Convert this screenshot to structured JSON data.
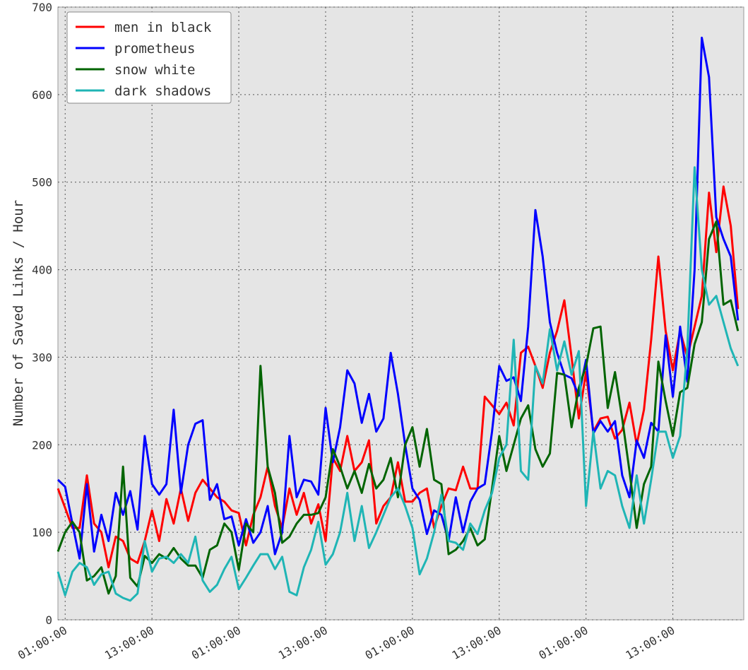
{
  "chart_data": {
    "type": "line",
    "ylabel": "Number of Saved Links / Hour",
    "categories": [
      null,
      "01:00:00",
      null,
      null,
      null,
      null,
      null,
      null,
      null,
      null,
      null,
      null,
      null,
      "13:00:00",
      null,
      null,
      null,
      null,
      null,
      null,
      null,
      null,
      null,
      null,
      null,
      "01:00:00",
      null,
      null,
      null,
      null,
      null,
      null,
      null,
      null,
      null,
      null,
      null,
      "13:00:00",
      null,
      null,
      null,
      null,
      null,
      null,
      null,
      null,
      null,
      null,
      null,
      "01:00:00",
      null,
      null,
      null,
      null,
      null,
      null,
      null,
      null,
      null,
      null,
      null,
      "13:00:00",
      null,
      null,
      null,
      null,
      null,
      null,
      null,
      null,
      null,
      null,
      null,
      "01:00:00",
      null,
      null,
      null,
      null,
      null,
      null,
      null,
      null,
      null,
      null,
      null,
      "13:00:00",
      null,
      null,
      null,
      null,
      null,
      null,
      null,
      null,
      null
    ],
    "series": [
      {
        "name": "men in black",
        "color": "#ff0000",
        "values": [
          150,
          128,
          105,
          105,
          165,
          110,
          100,
          60,
          95,
          90,
          70,
          65,
          90,
          125,
          90,
          138,
          110,
          150,
          113,
          145,
          160,
          150,
          140,
          135,
          125,
          122,
          85,
          120,
          140,
          175,
          130,
          105,
          150,
          120,
          145,
          110,
          132,
          90,
          185,
          170,
          210,
          170,
          180,
          205,
          110,
          130,
          140,
          180,
          135,
          135,
          145,
          150,
          105,
          130,
          150,
          148,
          175,
          150,
          150,
          255,
          245,
          235,
          248,
          222,
          305,
          312,
          290,
          265,
          305,
          330,
          365,
          300,
          230,
          283,
          215,
          230,
          232,
          207,
          217,
          248,
          200,
          240,
          320,
          415,
          330,
          285,
          330,
          300,
          335,
          370,
          488,
          420,
          495,
          450,
          355
        ]
      },
      {
        "name": "prometheus",
        "color": "#0000ff",
        "values": [
          160,
          152,
          110,
          70,
          155,
          78,
          120,
          90,
          145,
          120,
          147,
          103,
          210,
          155,
          143,
          155,
          240,
          145,
          200,
          224,
          228,
          137,
          155,
          115,
          118,
          85,
          115,
          88,
          100,
          130,
          75,
          100,
          210,
          140,
          160,
          158,
          143,
          242,
          180,
          220,
          285,
          270,
          225,
          258,
          215,
          230,
          305,
          258,
          200,
          150,
          137,
          98,
          125,
          120,
          90,
          140,
          100,
          135,
          150,
          155,
          215,
          290,
          273,
          277,
          250,
          335,
          468,
          415,
          340,
          305,
          280,
          276,
          256,
          297,
          213,
          227,
          215,
          227,
          165,
          140,
          205,
          185,
          225,
          215,
          325,
          255,
          335,
          272,
          400,
          665,
          620,
          460,
          435,
          415,
          342
        ]
      },
      {
        "name": "snow white",
        "color": "#006400",
        "values": [
          78,
          100,
          112,
          100,
          45,
          50,
          60,
          30,
          50,
          175,
          48,
          38,
          73,
          65,
          75,
          70,
          82,
          70,
          62,
          62,
          48,
          80,
          85,
          110,
          100,
          57,
          110,
          100,
          290,
          175,
          145,
          88,
          95,
          110,
          120,
          120,
          122,
          140,
          195,
          175,
          150,
          170,
          145,
          178,
          150,
          160,
          185,
          140,
          200,
          220,
          175,
          218,
          160,
          155,
          75,
          80,
          90,
          105,
          85,
          92,
          150,
          210,
          170,
          200,
          230,
          245,
          195,
          175,
          190,
          282,
          280,
          220,
          265,
          290,
          333,
          335,
          242,
          283,
          230,
          170,
          105,
          155,
          175,
          295,
          250,
          210,
          260,
          265,
          315,
          340,
          435,
          455,
          360,
          365,
          330
        ]
      },
      {
        "name": "dark shadows",
        "color": "#1fb5b5",
        "values": [
          55,
          28,
          55,
          65,
          60,
          40,
          52,
          55,
          30,
          25,
          22,
          30,
          90,
          55,
          70,
          72,
          65,
          75,
          65,
          95,
          45,
          32,
          40,
          58,
          72,
          35,
          48,
          62,
          75,
          75,
          58,
          72,
          32,
          28,
          60,
          80,
          112,
          63,
          75,
          100,
          145,
          90,
          130,
          82,
          100,
          120,
          140,
          150,
          130,
          105,
          52,
          70,
          100,
          143,
          90,
          88,
          80,
          110,
          98,
          125,
          145,
          185,
          200,
          320,
          170,
          160,
          290,
          270,
          332,
          285,
          318,
          280,
          307,
          130,
          215,
          150,
          170,
          165,
          130,
          105,
          165,
          110,
          160,
          215,
          215,
          185,
          210,
          310,
          517,
          400,
          360,
          370,
          340,
          310,
          290
        ]
      }
    ],
    "ylim": [
      0,
      700
    ],
    "yticks": [
      0,
      100,
      200,
      300,
      400,
      500,
      600,
      700
    ],
    "grid": true,
    "legend": "upper left"
  }
}
